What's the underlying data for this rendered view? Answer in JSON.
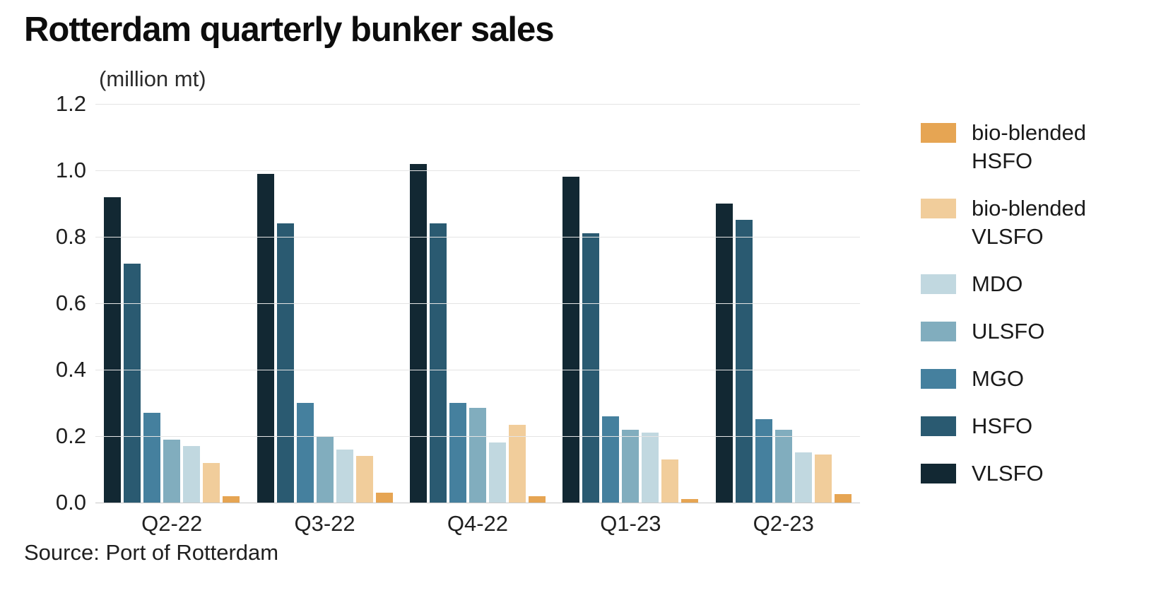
{
  "title": "Rotterdam quarterly bunker sales",
  "subtitle": "(million mt)",
  "source": "Source: Port of Rotterdam",
  "axis_colors": {
    "gridline": "#e4e4e4",
    "baseline": "#c8c8c8",
    "tick_text": "#202020"
  },
  "chart_data": {
    "type": "bar",
    "title": "Rotterdam quarterly bunker sales",
    "ylabel": "(million mt)",
    "categories": [
      "Q2-22",
      "Q3-22",
      "Q4-22",
      "Q1-23",
      "Q2-23"
    ],
    "series": [
      {
        "name": "VLSFO",
        "color": "#122833",
        "values": [
          0.92,
          0.99,
          1.02,
          0.98,
          0.9
        ]
      },
      {
        "name": "HSFO",
        "color": "#2a5a71",
        "values": [
          0.72,
          0.84,
          0.84,
          0.81,
          0.85
        ]
      },
      {
        "name": "MGO",
        "color": "#45809e",
        "values": [
          0.27,
          0.3,
          0.3,
          0.26,
          0.25
        ]
      },
      {
        "name": "ULSFO",
        "color": "#81adbe",
        "values": [
          0.19,
          0.2,
          0.285,
          0.22,
          0.22
        ]
      },
      {
        "name": "MDO",
        "color": "#c1d8e0",
        "values": [
          0.17,
          0.16,
          0.18,
          0.21,
          0.15
        ]
      },
      {
        "name": "bio-blended VLSFO",
        "color": "#f1cd9b",
        "values": [
          0.12,
          0.14,
          0.235,
          0.13,
          0.145
        ]
      },
      {
        "name": "bio-blended HSFO",
        "color": "#e6a553",
        "values": [
          0.02,
          0.03,
          0.02,
          0.01,
          0.025
        ]
      }
    ],
    "legend_order_top_to_bottom": [
      "bio-blended HSFO",
      "bio-blended VLSFO",
      "MDO",
      "ULSFO",
      "MGO",
      "HSFO",
      "VLSFO"
    ],
    "ylim": [
      0,
      1.2
    ],
    "yticks": [
      0.0,
      0.2,
      0.4,
      0.6,
      0.8,
      1.0,
      1.2
    ],
    "grid": "horizontal",
    "legend_position": "right"
  }
}
